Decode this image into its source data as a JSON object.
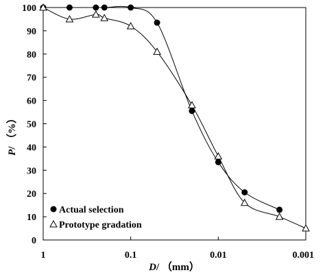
{
  "chart_data": {
    "type": "scatter",
    "xscale": "log",
    "xreversed": true,
    "xlim": [
      1,
      0.001
    ],
    "ylim": [
      0,
      100
    ],
    "xlabel": {
      "var": "D",
      "unit": "/ （mm）"
    },
    "ylabel": {
      "var": "P",
      "unit": "/ （%）"
    },
    "xticks": [
      {
        "value": 1,
        "label": "1"
      },
      {
        "value": 0.1,
        "label": "0.1"
      },
      {
        "value": 0.01,
        "label": "0.01"
      },
      {
        "value": 0.001,
        "label": "0.001"
      }
    ],
    "yticks": [
      0,
      10,
      20,
      30,
      40,
      50,
      60,
      70,
      80,
      90,
      100
    ],
    "grid": false,
    "legend_position": "bottom-left",
    "series": [
      {
        "name": "Actual selection",
        "marker": "filled-circle",
        "color": "#000000",
        "points": [
          {
            "x": 1,
            "y": 100
          },
          {
            "x": 0.5,
            "y": 100
          },
          {
            "x": 0.25,
            "y": 100
          },
          {
            "x": 0.2,
            "y": 100
          },
          {
            "x": 0.1,
            "y": 100
          },
          {
            "x": 0.05,
            "y": 93.5
          },
          {
            "x": 0.02,
            "y": 55.5
          },
          {
            "x": 0.01,
            "y": 33.5
          },
          {
            "x": 0.005,
            "y": 20.5
          },
          {
            "x": 0.002,
            "y": 13
          }
        ]
      },
      {
        "name": "Prototype gradation",
        "marker": "open-triangle",
        "color": "#000000",
        "points": [
          {
            "x": 1,
            "y": 100
          },
          {
            "x": 0.5,
            "y": 95
          },
          {
            "x": 0.25,
            "y": 97
          },
          {
            "x": 0.2,
            "y": 95.5
          },
          {
            "x": 0.1,
            "y": 92
          },
          {
            "x": 0.05,
            "y": 81
          },
          {
            "x": 0.02,
            "y": 58
          },
          {
            "x": 0.01,
            "y": 36
          },
          {
            "x": 0.005,
            "y": 16
          },
          {
            "x": 0.002,
            "y": 10
          },
          {
            "x": 0.001,
            "y": 5
          }
        ]
      }
    ]
  }
}
